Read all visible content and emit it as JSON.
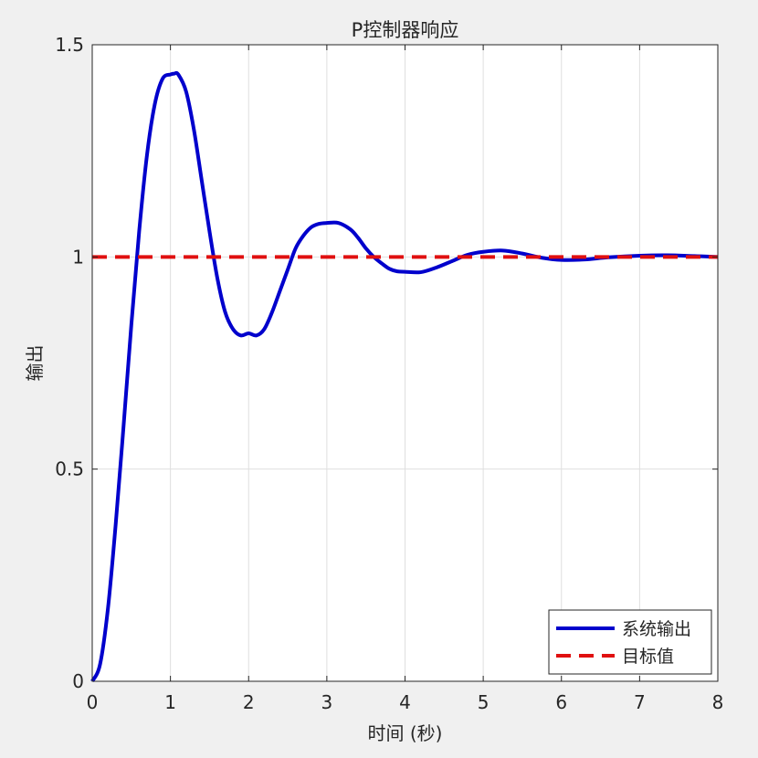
{
  "chart_data": {
    "type": "line",
    "title": "P控制器响应",
    "xlabel": "时间 (秒)",
    "ylabel": "输出",
    "xlim": [
      0,
      8
    ],
    "ylim": [
      0,
      1.5
    ],
    "x_ticks": [
      "0",
      "1",
      "2",
      "3",
      "4",
      "5",
      "6",
      "7",
      "8"
    ],
    "y_ticks": [
      "0",
      "0.5",
      "1",
      "1.5"
    ],
    "grid": true,
    "legend_position": "bottom-right",
    "series": [
      {
        "name": "系统输出",
        "color": "#0000cc",
        "style": "solid",
        "x": [
          0,
          0.1,
          0.2,
          0.3,
          0.4,
          0.5,
          0.6,
          0.7,
          0.8,
          0.9,
          1.0,
          1.05,
          1.1,
          1.2,
          1.3,
          1.4,
          1.5,
          1.6,
          1.7,
          1.8,
          1.9,
          2.0,
          2.1,
          2.2,
          2.3,
          2.4,
          2.5,
          2.6,
          2.7,
          2.8,
          2.9,
          3.0,
          3.15,
          3.3,
          3.4,
          3.5,
          3.6,
          3.7,
          3.8,
          3.9,
          4.0,
          4.2,
          4.4,
          4.6,
          4.8,
          5.0,
          5.25,
          5.5,
          5.75,
          6.0,
          6.3,
          6.6,
          7.0,
          7.35,
          7.7,
          8.0
        ],
        "values": [
          0,
          0.04,
          0.17,
          0.37,
          0.6,
          0.84,
          1.06,
          1.24,
          1.36,
          1.42,
          1.43,
          1.432,
          1.43,
          1.39,
          1.3,
          1.18,
          1.06,
          0.95,
          0.87,
          0.83,
          0.815,
          0.82,
          0.815,
          0.83,
          0.87,
          0.92,
          0.97,
          1.02,
          1.05,
          1.07,
          1.078,
          1.08,
          1.08,
          1.065,
          1.045,
          1.02,
          1.0,
          0.985,
          0.972,
          0.966,
          0.965,
          0.964,
          0.975,
          0.99,
          1.005,
          1.012,
          1.015,
          1.008,
          0.998,
          0.993,
          0.994,
          0.999,
          1.003,
          1.004,
          1.002,
          1.0
        ]
      },
      {
        "name": "目标值",
        "color": "#e01010",
        "style": "dashed",
        "x": [
          0,
          8
        ],
        "values": [
          1,
          1
        ]
      }
    ]
  }
}
